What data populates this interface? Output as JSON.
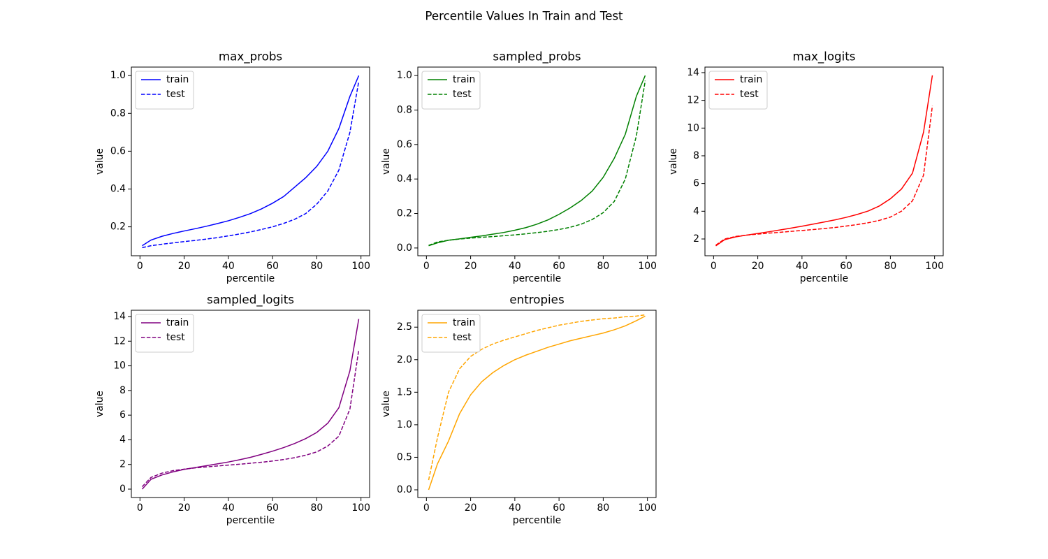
{
  "title": "Percentile Values In Train and Test",
  "chart_data": [
    {
      "type": "line",
      "title": "max_probs",
      "x_label": "percentile",
      "y_label": "value",
      "x": [
        1,
        5,
        10,
        15,
        20,
        25,
        30,
        35,
        40,
        45,
        50,
        55,
        60,
        65,
        70,
        75,
        80,
        85,
        90,
        95,
        99
      ],
      "xlim": [
        -3.9,
        103.9
      ],
      "xticks": [
        0,
        20,
        40,
        60,
        80,
        100
      ],
      "ylim": [
        0.047,
        1.045
      ],
      "yticks": [
        0.2,
        0.4,
        0.6,
        0.8,
        {
          "value": 1,
          "label": "1.0"
        }
      ],
      "legend": "upper left",
      "series": [
        {
          "name": "train",
          "color": "#0000ff",
          "linestyle": "solid",
          "values": [
            0.1,
            0.13,
            0.15,
            0.165,
            0.178,
            0.19,
            0.203,
            0.217,
            0.232,
            0.25,
            0.27,
            0.295,
            0.325,
            0.36,
            0.41,
            0.46,
            0.52,
            0.6,
            0.72,
            0.89,
            1.0
          ]
        },
        {
          "name": "test",
          "color": "#0000ff",
          "linestyle": "dashed",
          "values": [
            0.09,
            0.1,
            0.108,
            0.115,
            0.122,
            0.128,
            0.135,
            0.143,
            0.152,
            0.162,
            0.173,
            0.186,
            0.2,
            0.218,
            0.24,
            0.27,
            0.32,
            0.39,
            0.5,
            0.7,
            0.97
          ]
        }
      ]
    },
    {
      "type": "line",
      "title": "sampled_probs",
      "x_label": "percentile",
      "y_label": "value",
      "x": [
        1,
        5,
        10,
        15,
        20,
        25,
        30,
        35,
        40,
        45,
        50,
        55,
        60,
        65,
        70,
        75,
        80,
        85,
        90,
        95,
        99
      ],
      "xlim": [
        -3.9,
        103.9
      ],
      "xticks": [
        0,
        20,
        40,
        60,
        80,
        100
      ],
      "ylim": [
        -0.045,
        1.049
      ],
      "yticks": [
        {
          "value": 0,
          "label": "0.0"
        },
        0.2,
        0.4,
        0.6,
        0.8,
        {
          "value": 1,
          "label": "1.0"
        }
      ],
      "legend": "upper left",
      "series": [
        {
          "name": "train",
          "color": "#008000",
          "linestyle": "solid",
          "values": [
            0.013,
            0.03,
            0.045,
            0.053,
            0.062,
            0.07,
            0.08,
            0.09,
            0.103,
            0.118,
            0.138,
            0.163,
            0.195,
            0.232,
            0.275,
            0.33,
            0.41,
            0.52,
            0.66,
            0.88,
            1.0
          ]
        },
        {
          "name": "test",
          "color": "#008000",
          "linestyle": "dashed",
          "values": [
            0.015,
            0.035,
            0.045,
            0.052,
            0.057,
            0.062,
            0.066,
            0.071,
            0.076,
            0.082,
            0.089,
            0.097,
            0.107,
            0.12,
            0.138,
            0.165,
            0.205,
            0.27,
            0.4,
            0.65,
            0.97
          ]
        }
      ]
    },
    {
      "type": "line",
      "title": "max_logits",
      "x_label": "percentile",
      "y_label": "value",
      "x": [
        1,
        5,
        10,
        15,
        20,
        25,
        30,
        35,
        40,
        45,
        50,
        55,
        60,
        65,
        70,
        75,
        80,
        85,
        90,
        95,
        99
      ],
      "xlim": [
        -3.9,
        103.9
      ],
      "xticks": [
        0,
        20,
        40,
        60,
        80,
        100
      ],
      "ylim": [
        0.79,
        14.4
      ],
      "yticks": [
        2,
        4,
        6,
        8,
        10,
        12,
        14
      ],
      "legend": "upper left",
      "series": [
        {
          "name": "train",
          "color": "#ff0000",
          "linestyle": "solid",
          "values": [
            1.5,
            1.95,
            2.15,
            2.28,
            2.4,
            2.52,
            2.65,
            2.78,
            2.92,
            3.07,
            3.22,
            3.38,
            3.56,
            3.77,
            4.02,
            4.38,
            4.9,
            5.6,
            6.75,
            9.7,
            13.8
          ]
        },
        {
          "name": "test",
          "color": "#ff0000",
          "linestyle": "dashed",
          "values": [
            1.55,
            2.0,
            2.18,
            2.28,
            2.35,
            2.42,
            2.48,
            2.55,
            2.61,
            2.68,
            2.75,
            2.83,
            2.93,
            3.04,
            3.17,
            3.34,
            3.58,
            4.0,
            4.75,
            6.6,
            11.6
          ]
        }
      ]
    },
    {
      "type": "line",
      "title": "sampled_logits",
      "x_label": "percentile",
      "y_label": "value",
      "x": [
        1,
        5,
        10,
        15,
        20,
        25,
        30,
        35,
        40,
        45,
        50,
        55,
        60,
        65,
        70,
        75,
        80,
        85,
        90,
        95,
        99
      ],
      "xlim": [
        -3.9,
        103.9
      ],
      "xticks": [
        0,
        20,
        40,
        60,
        80,
        100
      ],
      "ylim": [
        -0.68,
        14.51
      ],
      "yticks": [
        0,
        2,
        4,
        6,
        8,
        10,
        12,
        14
      ],
      "legend": "upper left",
      "series": [
        {
          "name": "train",
          "color": "#800080",
          "linestyle": "solid",
          "values": [
            0.0,
            0.8,
            1.15,
            1.4,
            1.6,
            1.75,
            1.9,
            2.05,
            2.2,
            2.38,
            2.58,
            2.82,
            3.08,
            3.37,
            3.7,
            4.1,
            4.6,
            5.35,
            6.6,
            9.6,
            13.8
          ]
        },
        {
          "name": "test",
          "color": "#800080",
          "linestyle": "dashed",
          "values": [
            0.2,
            0.95,
            1.3,
            1.5,
            1.62,
            1.72,
            1.8,
            1.88,
            1.95,
            2.02,
            2.1,
            2.18,
            2.28,
            2.4,
            2.55,
            2.75,
            3.02,
            3.5,
            4.3,
            6.5,
            11.3
          ]
        }
      ]
    },
    {
      "type": "line",
      "title": "entropies",
      "x_label": "percentile",
      "y_label": "value",
      "x": [
        1,
        5,
        10,
        15,
        20,
        25,
        30,
        35,
        40,
        45,
        50,
        55,
        60,
        65,
        70,
        75,
        80,
        85,
        90,
        95,
        99
      ],
      "xlim": [
        -3.9,
        103.9
      ],
      "xticks": [
        0,
        20,
        40,
        60,
        80,
        100
      ],
      "ylim": [
        -0.118,
        2.76
      ],
      "yticks": [
        {
          "value": 0,
          "label": "0.0"
        },
        0.5,
        {
          "value": 1,
          "label": "1.0"
        },
        1.5,
        {
          "value": 2,
          "label": "2.0"
        },
        2.5
      ],
      "legend": "upper left",
      "series": [
        {
          "name": "train",
          "color": "#ffa500",
          "linestyle": "solid",
          "values": [
            0.0,
            0.4,
            0.75,
            1.17,
            1.46,
            1.66,
            1.8,
            1.91,
            2.0,
            2.07,
            2.13,
            2.19,
            2.24,
            2.29,
            2.33,
            2.37,
            2.41,
            2.46,
            2.52,
            2.6,
            2.67
          ]
        },
        {
          "name": "test",
          "color": "#ffa500",
          "linestyle": "dashed",
          "values": [
            0.15,
            0.8,
            1.5,
            1.86,
            2.05,
            2.16,
            2.24,
            2.3,
            2.35,
            2.4,
            2.45,
            2.49,
            2.53,
            2.56,
            2.59,
            2.61,
            2.63,
            2.64,
            2.66,
            2.67,
            2.69
          ]
        }
      ]
    }
  ]
}
